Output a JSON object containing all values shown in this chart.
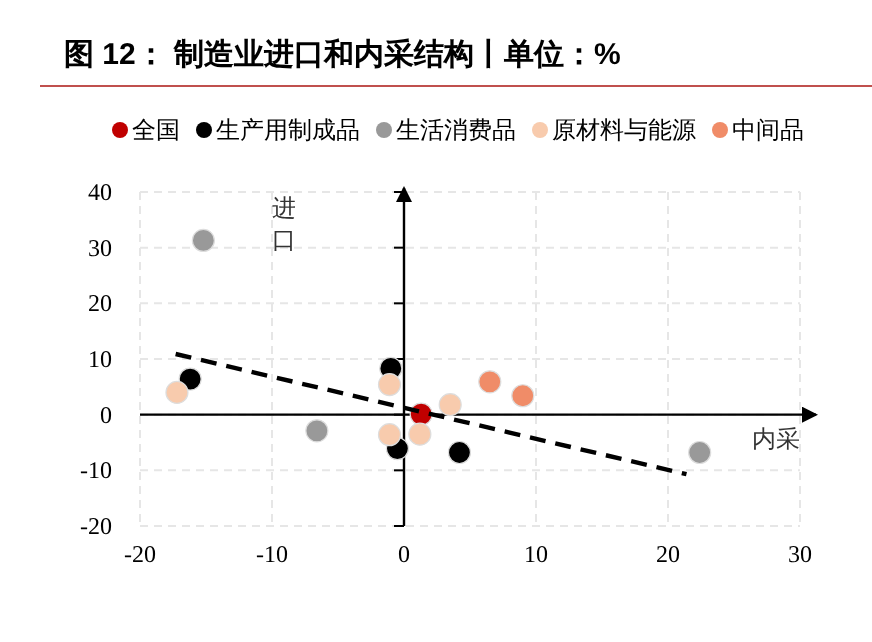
{
  "chart_data": {
    "type": "scatter",
    "title": "图 12： 制造业进口和内采结构丨单位：%",
    "xlabel": "内采",
    "ylabel": "进口",
    "xlim": [
      -20,
      30
    ],
    "ylim": [
      -20,
      40
    ],
    "xticks": [
      -20,
      -10,
      0,
      10,
      20,
      30
    ],
    "yticks": [
      -20,
      -10,
      0,
      10,
      20,
      30,
      40
    ],
    "grid": true,
    "legend": "top",
    "marker": "circle",
    "series": [
      {
        "name": "全国",
        "color": "#c00000",
        "x": [
          1.3
        ],
        "values": [
          0.1
        ]
      },
      {
        "name": "生产用制成品",
        "color": "#000000",
        "x": [
          -16.2,
          -1.0,
          -0.5,
          4.2
        ],
        "values": [
          6.4,
          8.3,
          -6.1,
          -6.8
        ]
      },
      {
        "name": "生活消费品",
        "color": "#999999",
        "x": [
          -15.2,
          -6.6,
          22.4
        ],
        "values": [
          31.3,
          -2.9,
          -6.8
        ]
      },
      {
        "name": "原材料与能源",
        "color": "#f8cbad",
        "x": [
          -17.2,
          -1.1,
          -1.1,
          1.2,
          3.5
        ],
        "values": [
          4.0,
          5.4,
          -3.6,
          -3.5,
          1.8
        ]
      },
      {
        "name": "中间品",
        "color": "#f08c68",
        "x": [
          6.5,
          9.0
        ],
        "values": [
          5.9,
          3.4
        ]
      },
      {
        "type": "line",
        "color": "#000000",
        "line_style": "dashed",
        "marker": "none",
        "x": [
          -17.3,
          21.4
        ],
        "values": [
          10.9,
          -10.7
        ]
      }
    ]
  }
}
